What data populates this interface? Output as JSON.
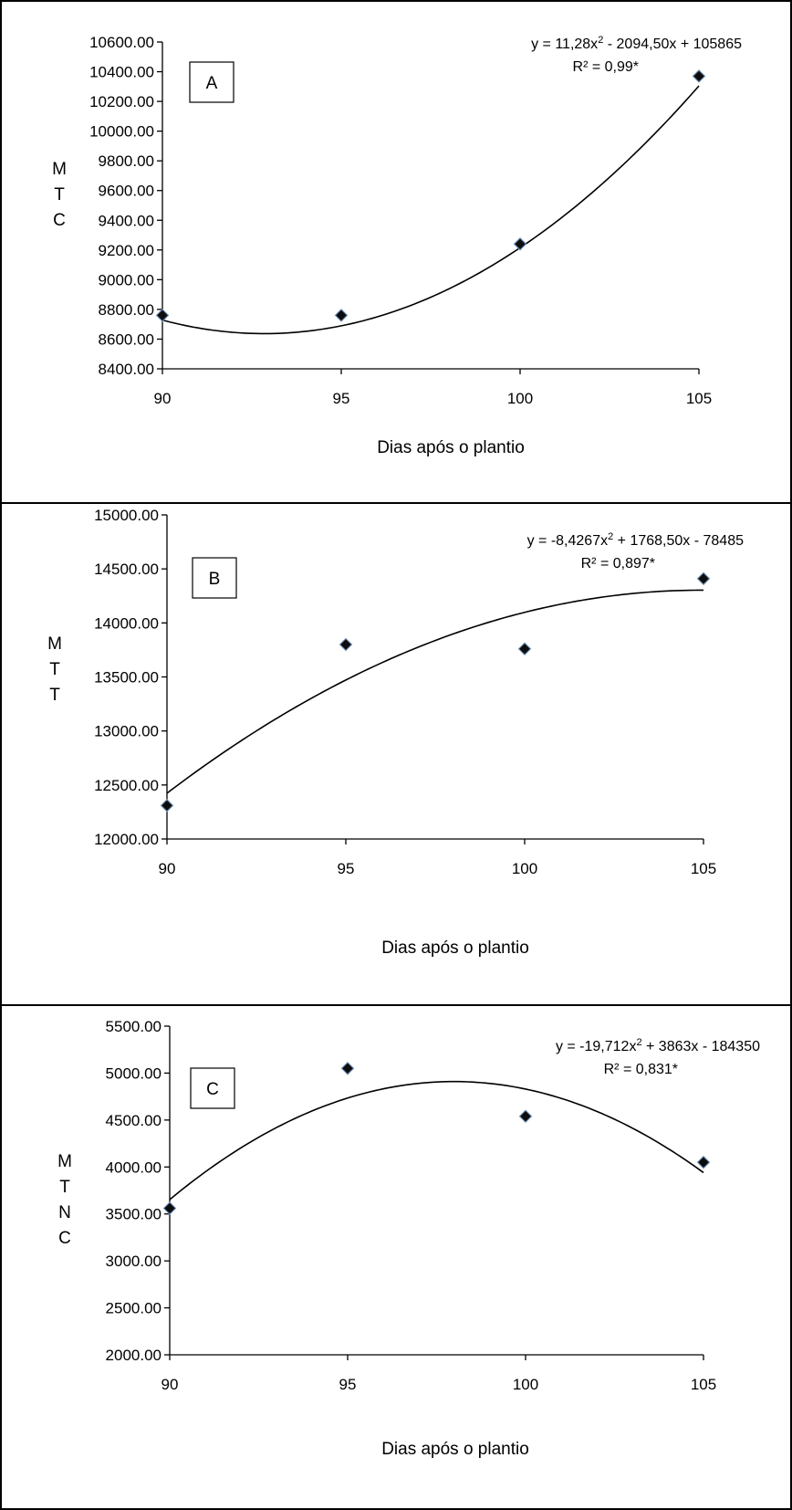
{
  "chart_data": [
    {
      "type": "scatter",
      "panel_label": "A",
      "ylabel": "MTC",
      "xlabel": "Dias após o plantio",
      "x": [
        90,
        95,
        100,
        105
      ],
      "y": [
        8760,
        8760,
        9240,
        10370
      ],
      "xlim": [
        90,
        105
      ],
      "ylim": [
        8400,
        10600
      ],
      "xticks": [
        90,
        95,
        100,
        105
      ],
      "xtick_labels": [
        "90",
        "95",
        "100",
        "105"
      ],
      "yticks": [
        8400,
        8600,
        8800,
        9000,
        9200,
        9400,
        9600,
        9800,
        10000,
        10200,
        10400,
        10600
      ],
      "ytick_labels": [
        "8400.00",
        "8600.00",
        "8800.00",
        "9000.00",
        "9200.00",
        "9400.00",
        "9600.00",
        "9800.00",
        "10000.00",
        "10200.00",
        "10400.00",
        "10600.00"
      ],
      "trendline": {
        "type": "polynomial",
        "a": 11.28,
        "b": -2094.5,
        "c": 105865
      },
      "equation": {
        "prefix": "y = 11,28x",
        "sup": "2",
        "suffix": " - 2094,50x + 105865",
        "r2": "R² = 0,99*"
      },
      "grid": false,
      "legend": false
    },
    {
      "type": "scatter",
      "panel_label": "B",
      "ylabel": "MTT",
      "xlabel": "Dias após o plantio",
      "x": [
        90,
        95,
        100,
        105
      ],
      "y": [
        12310,
        13800,
        13760,
        14410
      ],
      "xlim": [
        90,
        105
      ],
      "ylim": [
        12000,
        15000
      ],
      "xticks": [
        90,
        95,
        100,
        105
      ],
      "xtick_labels": [
        "90",
        "95",
        "100",
        "105"
      ],
      "yticks": [
        12000,
        12500,
        13000,
        13500,
        14000,
        14500,
        15000
      ],
      "ytick_labels": [
        "12000.00",
        "12500.00",
        "13000.00",
        "13500.00",
        "14000.00",
        "14500.00",
        "15000.00"
      ],
      "trendline": {
        "type": "polynomial",
        "a": -8.4267,
        "b": 1768.5,
        "c": -78485
      },
      "equation": {
        "prefix": "y = -8,4267x",
        "sup": "2",
        "suffix": " + 1768,50x - 78485",
        "r2": "R² = 0,897*"
      },
      "grid": false,
      "legend": false
    },
    {
      "type": "scatter",
      "panel_label": "C",
      "ylabel": "MTNC",
      "xlabel": "Dias após o plantio",
      "x": [
        90,
        95,
        100,
        105
      ],
      "y": [
        3560,
        5050,
        4540,
        4050
      ],
      "xlim": [
        90,
        105
      ],
      "ylim": [
        2000,
        5500
      ],
      "xticks": [
        90,
        95,
        100,
        105
      ],
      "xtick_labels": [
        "90",
        "95",
        "100",
        "105"
      ],
      "yticks": [
        2000,
        2500,
        3000,
        3500,
        4000,
        4500,
        5000,
        5500
      ],
      "ytick_labels": [
        "2000.00",
        "2500.00",
        "3000.00",
        "3500.00",
        "4000.00",
        "4500.00",
        "5000.00",
        "5500.00"
      ],
      "trendline": {
        "type": "polynomial",
        "a": -19.712,
        "b": 3863,
        "c": -184350
      },
      "equation": {
        "prefix": "y = -19,712x",
        "sup": "2",
        "suffix": " + 3863x - 184350",
        "r2": "R² = 0,831*"
      },
      "grid": false,
      "legend": false
    }
  ],
  "colors": {
    "marker_fill": "#0d0d0d",
    "marker_edge": "#6f8fb8",
    "line": "#000000"
  }
}
